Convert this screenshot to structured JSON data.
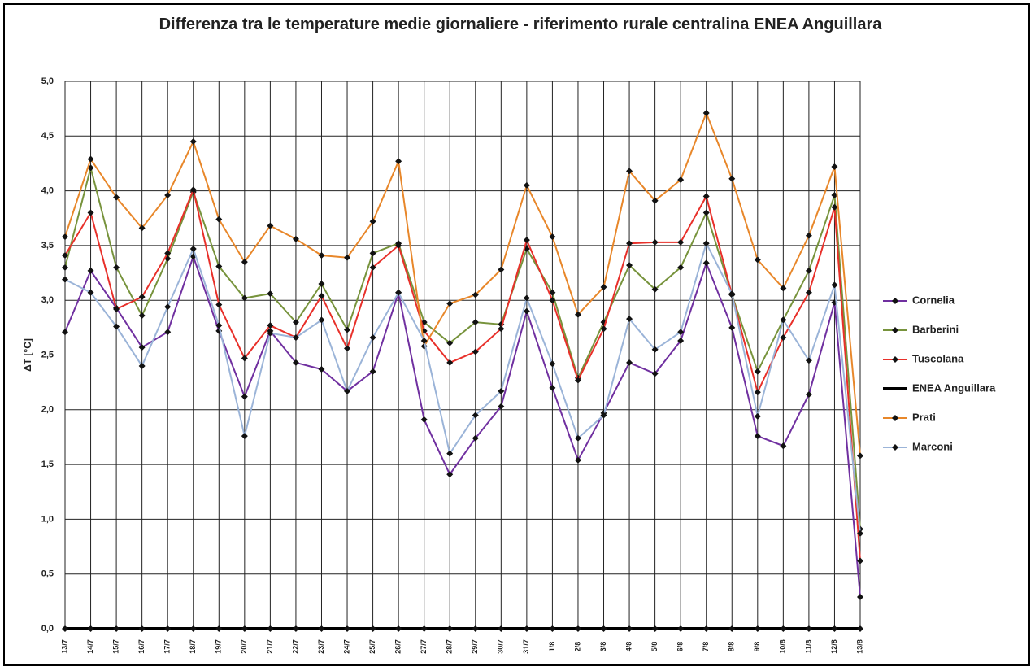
{
  "chart_data": {
    "type": "line",
    "title": "Differenza tra le temperature medie giornaliere - riferimento rurale centralina ENEA Anguillara",
    "ylabel": "ΔT [°C]",
    "categories": [
      "13/7",
      "14/7",
      "15/7",
      "16/7",
      "17/7",
      "18/7",
      "19/7",
      "20/7",
      "21/7",
      "22/7",
      "23/7",
      "24/7",
      "25/7",
      "26/7",
      "27/7",
      "28/7",
      "29/7",
      "30/7",
      "31/7",
      "1/8",
      "2/8",
      "3/8",
      "4/8",
      "5/8",
      "6/8",
      "7/8",
      "8/8",
      "9/8",
      "10/8",
      "11/8",
      "12/8",
      "13/8"
    ],
    "ylim": [
      0,
      5
    ],
    "yticks": [
      {
        "value": 0,
        "label": "0,0"
      },
      {
        "value": 0.5,
        "label": "0,5"
      },
      {
        "value": 1,
        "label": "1,0"
      },
      {
        "value": 1.5,
        "label": "1,5"
      },
      {
        "value": 2,
        "label": "2,0"
      },
      {
        "value": 2.5,
        "label": "2,5"
      },
      {
        "value": 3,
        "label": "3,0"
      },
      {
        "value": 3.5,
        "label": "3,5"
      },
      {
        "value": 4,
        "label": "4,0"
      },
      {
        "value": 4.5,
        "label": "4,5"
      },
      {
        "value": 5,
        "label": "5,0"
      }
    ],
    "grid": true,
    "legend": "right",
    "marker_color": "#111111",
    "series": [
      {
        "name": "Cornelia",
        "color": "#7030a0",
        "values": [
          2.71,
          3.27,
          2.93,
          2.57,
          2.71,
          3.4,
          2.72,
          2.12,
          2.72,
          2.43,
          2.37,
          2.17,
          2.35,
          3.07,
          1.91,
          1.41,
          1.74,
          2.03,
          2.9,
          2.2,
          1.54,
          1.97,
          2.43,
          2.33,
          2.63,
          3.34,
          2.75,
          1.76,
          1.67,
          2.14,
          2.98,
          0.29
        ]
      },
      {
        "name": "Barberini",
        "color": "#77933c",
        "values": [
          3.3,
          4.21,
          3.3,
          2.86,
          3.38,
          3.99,
          3.31,
          3.02,
          3.06,
          2.8,
          3.15,
          2.73,
          3.43,
          3.52,
          2.8,
          2.61,
          2.8,
          2.78,
          3.47,
          3.07,
          2.29,
          2.8,
          3.32,
          3.1,
          3.3,
          3.8,
          3.05,
          2.35,
          2.82,
          3.27,
          3.96,
          0.91
        ]
      },
      {
        "name": "Tuscolana",
        "color": "#e8302a",
        "values": [
          3.41,
          3.8,
          2.92,
          3.03,
          3.43,
          4.01,
          2.96,
          2.47,
          2.77,
          2.66,
          3.04,
          2.56,
          3.3,
          3.5,
          2.72,
          2.43,
          2.53,
          2.74,
          3.55,
          3.0,
          2.27,
          2.74,
          3.52,
          3.53,
          3.53,
          3.95,
          3.05,
          2.16,
          2.66,
          3.07,
          3.85,
          0.62
        ]
      },
      {
        "name": "ENEA Anguillara",
        "color": "#000000",
        "width": 4,
        "values": [
          0,
          0,
          0,
          0,
          0,
          0,
          0,
          0,
          0,
          0,
          0,
          0,
          0,
          0,
          0,
          0,
          0,
          0,
          0,
          0,
          0,
          0,
          0,
          0,
          0,
          0,
          0,
          0,
          0,
          0,
          0,
          0
        ]
      },
      {
        "name": "Prati",
        "color": "#e8872a",
        "values": [
          3.58,
          4.29,
          3.94,
          3.66,
          3.96,
          4.45,
          3.74,
          3.35,
          3.68,
          3.56,
          3.41,
          3.39,
          3.72,
          4.27,
          2.58,
          2.97,
          3.05,
          3.28,
          4.05,
          3.58,
          2.87,
          3.12,
          4.18,
          3.91,
          4.1,
          4.71,
          4.11,
          3.37,
          3.11,
          3.59,
          4.22,
          1.58
        ]
      },
      {
        "name": "Marconi",
        "color": "#9bb4d8",
        "values": [
          3.19,
          3.07,
          2.76,
          2.4,
          2.94,
          3.47,
          2.77,
          1.76,
          2.7,
          2.66,
          2.82,
          2.17,
          2.66,
          3.07,
          2.63,
          1.6,
          1.95,
          2.17,
          3.02,
          2.42,
          1.74,
          1.95,
          2.83,
          2.55,
          2.71,
          3.52,
          3.06,
          1.94,
          2.82,
          2.45,
          3.14,
          0.87
        ]
      }
    ]
  }
}
